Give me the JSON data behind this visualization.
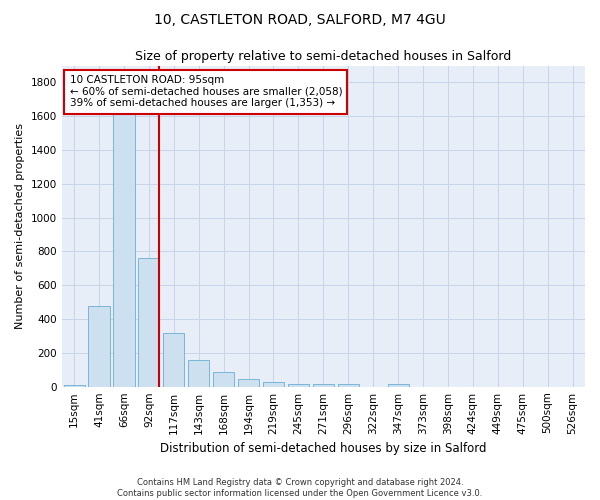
{
  "title1": "10, CASTLETON ROAD, SALFORD, M7 4GU",
  "title2": "Size of property relative to semi-detached houses in Salford",
  "xlabel": "Distribution of semi-detached houses by size in Salford",
  "ylabel": "Number of semi-detached properties",
  "footnote": "Contains HM Land Registry data © Crown copyright and database right 2024.\nContains public sector information licensed under the Open Government Licence v3.0.",
  "categories": [
    "15sqm",
    "41sqm",
    "66sqm",
    "92sqm",
    "117sqm",
    "143sqm",
    "168sqm",
    "194sqm",
    "219sqm",
    "245sqm",
    "271sqm",
    "296sqm",
    "322sqm",
    "347sqm",
    "373sqm",
    "398sqm",
    "424sqm",
    "449sqm",
    "475sqm",
    "500sqm",
    "526sqm"
  ],
  "values": [
    10,
    480,
    1650,
    760,
    320,
    155,
    85,
    48,
    28,
    18,
    14,
    18,
    0,
    18,
    0,
    0,
    0,
    0,
    0,
    0,
    0
  ],
  "bar_color": "#cce0f0",
  "bar_edge_color": "#6aaed6",
  "highlight_line_color": "#cc0000",
  "annotation_box_text": "10 CASTLETON ROAD: 95sqm\n← 60% of semi-detached houses are smaller (2,058)\n39% of semi-detached houses are larger (1,353) →",
  "annotation_box_color": "#cc0000",
  "ylim": [
    0,
    1900
  ],
  "yticks": [
    0,
    200,
    400,
    600,
    800,
    1000,
    1200,
    1400,
    1600,
    1800
  ],
  "grid_color": "#c8d4e8",
  "background_color": "#e8eef8",
  "title1_fontsize": 10,
  "title2_fontsize": 9,
  "xlabel_fontsize": 8.5,
  "ylabel_fontsize": 8,
  "tick_fontsize": 7.5,
  "annotation_fontsize": 7.5,
  "footnote_fontsize": 6
}
